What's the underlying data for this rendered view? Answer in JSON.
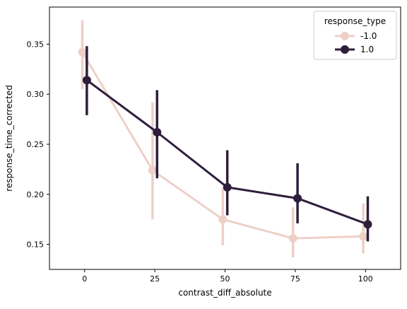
{
  "chart_data": {
    "type": "line",
    "title": "",
    "xlabel": "contrast_diff_absolute",
    "ylabel": "response_time_corrected",
    "x": [
      0,
      25,
      50,
      75,
      100
    ],
    "xlim": [
      -12.5,
      112.5
    ],
    "ylim": [
      0.125,
      0.387
    ],
    "x_ticks": [
      0,
      25,
      50,
      75,
      100
    ],
    "y_ticks": [
      0.15,
      0.2,
      0.25,
      0.3,
      0.35
    ],
    "y_tick_labels": [
      "0.15",
      "0.20",
      "0.25",
      "0.30",
      "0.35"
    ],
    "grid": false,
    "legend": {
      "title": "response_type",
      "placement": "top-right"
    },
    "series": [
      {
        "name": "-1.0",
        "color": "#eed0c8",
        "dodge": -0.8,
        "values": [
          0.342,
          0.224,
          0.175,
          0.156,
          0.158
        ],
        "ci_low": [
          0.305,
          0.175,
          0.149,
          0.137,
          0.141
        ],
        "ci_high": [
          0.374,
          0.292,
          0.206,
          0.187,
          0.191
        ]
      },
      {
        "name": "1.0",
        "color": "#2e1e3b",
        "dodge": 0.8,
        "values": [
          0.314,
          0.262,
          0.207,
          0.196,
          0.17
        ],
        "ci_low": [
          0.279,
          0.216,
          0.179,
          0.171,
          0.153
        ],
        "ci_high": [
          0.348,
          0.304,
          0.244,
          0.231,
          0.198
        ]
      }
    ]
  }
}
